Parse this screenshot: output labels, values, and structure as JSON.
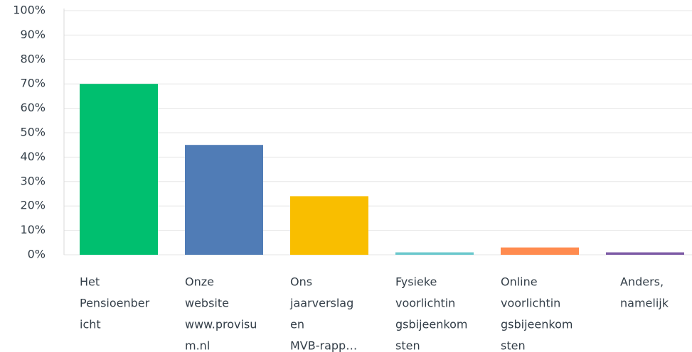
{
  "chart_data": {
    "type": "bar",
    "categories": [
      [
        "Het",
        "Pensioenber",
        "icht"
      ],
      [
        "Onze",
        "website",
        "www.provisu",
        "m.nl"
      ],
      [
        "Ons",
        "jaarverslag",
        "en",
        "MVB-rapp…"
      ],
      [
        "Fysieke",
        "voorlichtin",
        "gsbijeenkom",
        "sten"
      ],
      [
        "Online",
        "voorlichtin",
        "gsbijeenkom",
        "sten"
      ],
      [
        "Anders,",
        "namelijk"
      ]
    ],
    "values": [
      70,
      45,
      24,
      1,
      3,
      1
    ],
    "colors": [
      "#00bf6f",
      "#507cb6",
      "#f9be00",
      "#6bc8cd",
      "#ff8b4f",
      "#7d5ba6"
    ],
    "ylim": [
      0,
      100
    ],
    "yticks": [
      {
        "value": 0,
        "label": "0%"
      },
      {
        "value": 10,
        "label": "10%"
      },
      {
        "value": 20,
        "label": "20%"
      },
      {
        "value": 30,
        "label": "30%"
      },
      {
        "value": 40,
        "label": "40%"
      },
      {
        "value": 50,
        "label": "50%"
      },
      {
        "value": 60,
        "label": "60%"
      },
      {
        "value": 70,
        "label": "70%"
      },
      {
        "value": 80,
        "label": "80%"
      },
      {
        "value": 90,
        "label": "90%"
      },
      {
        "value": 100,
        "label": "100%"
      }
    ],
    "grid": true
  }
}
